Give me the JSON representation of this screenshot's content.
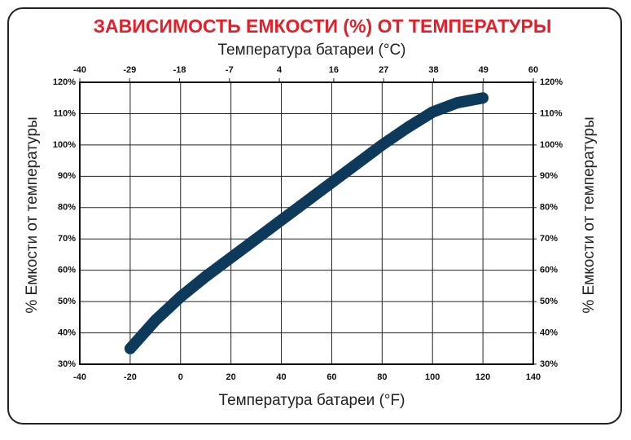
{
  "chart_data": {
    "type": "line",
    "title": "ЗАВИСИМОСТЬ ЕМКОСТИ (%) ОТ ТЕМПЕРАТУРЫ",
    "x_label": "Температура батареи (°F)",
    "x2_label": "Температура батареи (°C)",
    "y_label": "% Емкости от температуры",
    "y2_label": "% Емкости от температуры",
    "x": [
      -20,
      -10,
      0,
      10,
      20,
      30,
      40,
      50,
      60,
      70,
      80,
      90,
      100,
      110,
      120
    ],
    "series": [
      {
        "color": "#0d3a5a",
        "values": [
          35,
          44,
          51.5,
          58,
          64,
          70,
          76,
          82,
          88,
          94,
          100,
          105.5,
          110.5,
          113.5,
          115
        ]
      }
    ],
    "xlim": [
      -40,
      140
    ],
    "xticks": [
      -40,
      -20,
      0,
      20,
      40,
      60,
      80,
      100,
      120,
      140
    ],
    "x2lim": [
      -40,
      60
    ],
    "x2ticks": [
      -40,
      -29,
      -18,
      -7,
      4,
      16,
      27,
      38,
      49,
      60
    ],
    "ylim": [
      30,
      120
    ],
    "yticks": [
      {
        "value": 30,
        "label": "30%"
      },
      {
        "value": 40,
        "label": "40%"
      },
      {
        "value": 50,
        "label": "50%"
      },
      {
        "value": 60,
        "label": "60%"
      },
      {
        "value": 70,
        "label": "70%"
      },
      {
        "value": 80,
        "label": "80%"
      },
      {
        "value": 90,
        "label": "90%"
      },
      {
        "value": 100,
        "label": "100%"
      },
      {
        "value": 110,
        "label": "110%"
      },
      {
        "value": 120,
        "label": "120%"
      }
    ],
    "y2lim": [
      30,
      120
    ],
    "y2ticks": [
      {
        "value": 30,
        "label": "30%"
      },
      {
        "value": 40,
        "label": "40%"
      },
      {
        "value": 50,
        "label": "50%"
      },
      {
        "value": 60,
        "label": "60%"
      },
      {
        "value": 70,
        "label": "70%"
      },
      {
        "value": 80,
        "label": "80%"
      },
      {
        "value": 90,
        "label": "90%"
      },
      {
        "value": 100,
        "label": "100%"
      },
      {
        "value": 110,
        "label": "110%"
      },
      {
        "value": 120,
        "label": "120%"
      }
    ],
    "grid": true
  }
}
